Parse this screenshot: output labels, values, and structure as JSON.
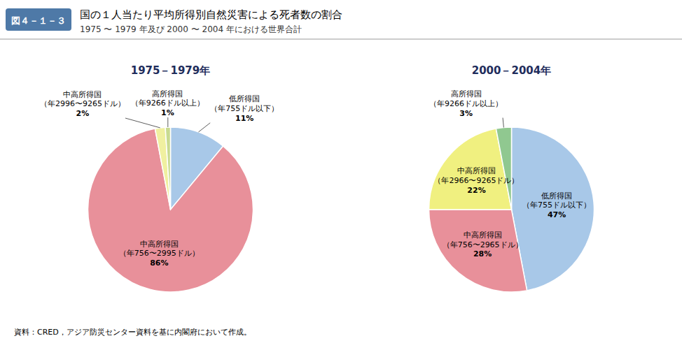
{
  "figure_label": "図４－１－３",
  "title": "国の１人当たり平均所得別自然災害による死者数の割合",
  "subtitle": "1975 〜 1979 年及び 2000 〜 2004 年における世界合計",
  "source": "資料：CRED，アジア防災センター資料を基に内閣府において作成。",
  "chart_data": [
    {
      "type": "pie",
      "title": "1975－1979年",
      "categories": [
        "低所得国\n（年755ドル以下）",
        "中高所得国\n（年756〜2995ドル）",
        "中高所得国\n（年2996〜9265ドル）",
        "高所得国\n（年9266ドル以上）"
      ],
      "values": [
        11,
        86,
        2,
        1
      ],
      "value_labels": [
        "11%",
        "86%",
        "2%",
        "1%"
      ],
      "colors": [
        "#A8C8E8",
        "#E8909A",
        "#F0F0A0",
        "#C8DA90"
      ],
      "data_labels": true
    },
    {
      "type": "pie",
      "title": "2000－2004年",
      "categories": [
        "低所得国\n（年755ドル以下）",
        "中高所得国\n（年756〜2965ドル）",
        "中高所得国\n（年2966〜9265ドル）",
        "高所得国\n（年9266ドル以上）"
      ],
      "values": [
        47,
        28,
        22,
        3
      ],
      "value_labels": [
        "47%",
        "28%",
        "22%",
        "3%"
      ],
      "colors": [
        "#A8C8E8",
        "#E8909A",
        "#F0F080",
        "#90C890"
      ],
      "data_labels": true
    }
  ]
}
